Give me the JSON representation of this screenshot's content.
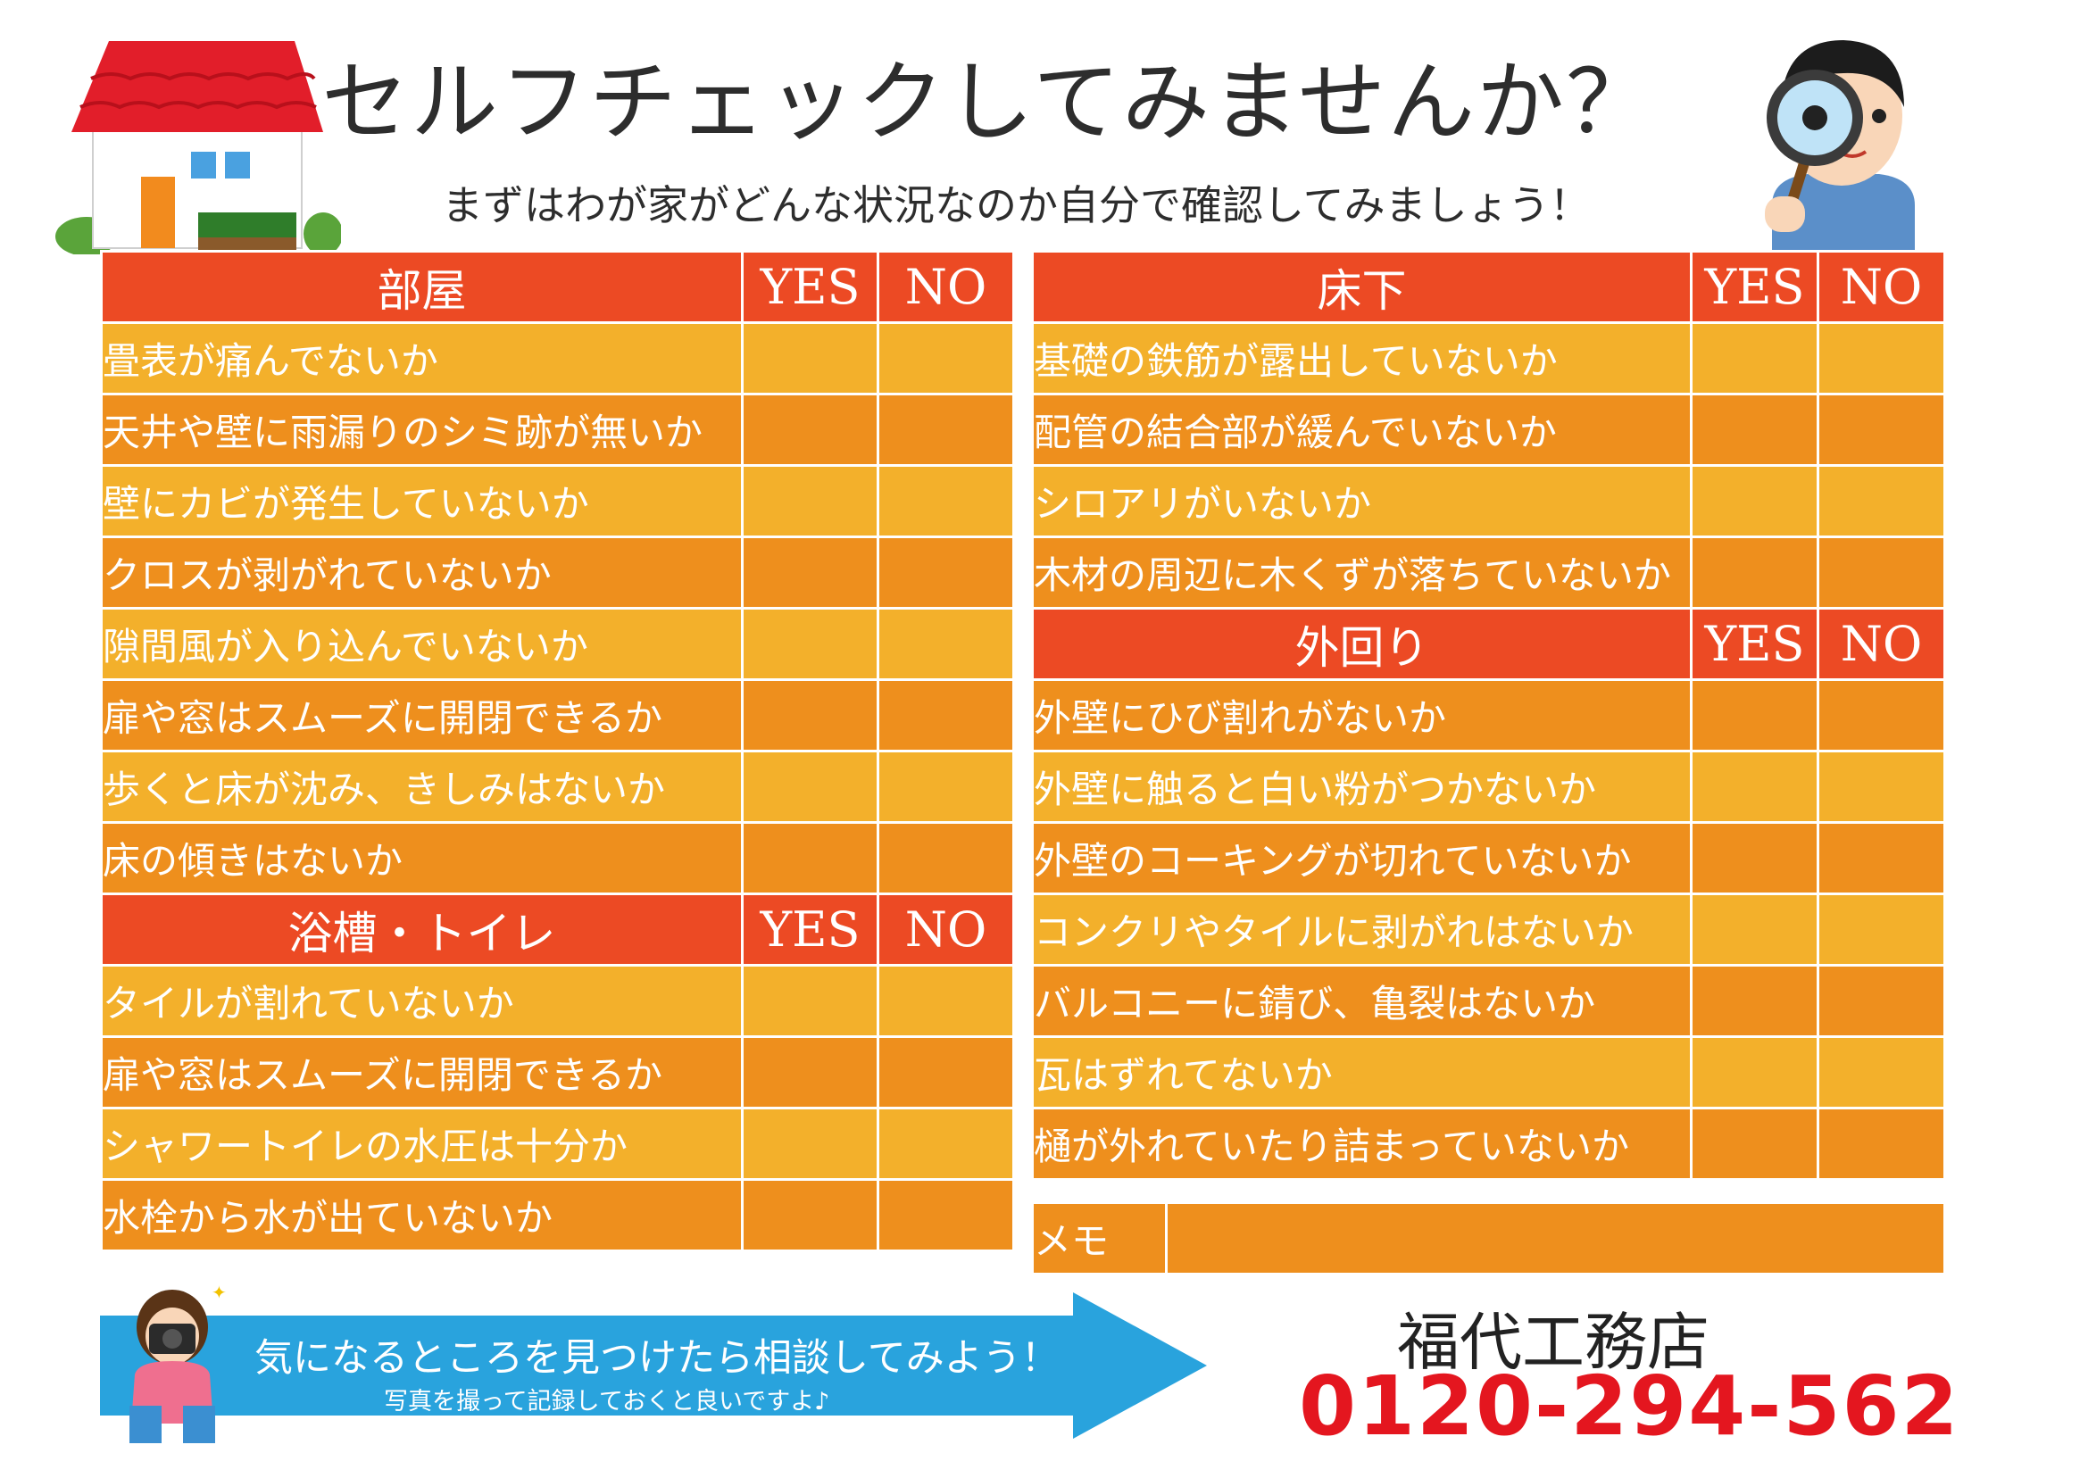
{
  "header": {
    "title": "セルフチェックしてみませんか？",
    "subtitle": "まずはわが家がどんな状況なのか自分で確認してみましょう！"
  },
  "columns": {
    "yes": "YES",
    "no": "NO"
  },
  "sections": {
    "heya": {
      "title": "部屋",
      "items": [
        "畳表が痛んでないか",
        "天井や壁に雨漏りのシミ跡が無いか",
        "壁にカビが発生していないか",
        "クロスが剥がれていないか",
        "隙間風が入り込んでいないか",
        "扉や窓はスムーズに開閉できるか",
        "歩くと床が沈み、きしみはないか",
        "床の傾きはないか"
      ]
    },
    "bath": {
      "title": "浴槽・トイレ",
      "items": [
        "タイルが割れていないか",
        "扉や窓はスムーズに開閉できるか",
        "シャワートイレの水圧は十分か",
        "水栓から水が出ていないか"
      ]
    },
    "yukashita": {
      "title": "床下",
      "items": [
        "基礎の鉄筋が露出していないか",
        "配管の結合部が緩んでいないか",
        "シロアリがいないか",
        "木材の周辺に木くずが落ちていないか"
      ]
    },
    "sotomawari": {
      "title": "外回り",
      "items": [
        "外壁にひび割れがないか",
        "外壁に触ると白い粉がつかないか",
        "外壁のコーキングが切れていないか",
        "コンクリやタイルに剥がれはないか",
        "バルコニーに錆び、亀裂はないか",
        "瓦はずれてないか",
        "樋が外れていたり詰まっていないか"
      ]
    }
  },
  "memo": {
    "label": "メモ"
  },
  "footer": {
    "banner_main": "気になるところを見つけたら相談してみよう！",
    "banner_sub": "写真を撮って記録しておくと良いですよ♪",
    "company": "福代工務店",
    "phone": "0120-294-562"
  },
  "colors": {
    "header_red": "#ec4a24",
    "row_yellow": "#f3b02b",
    "row_orange": "#ee8f1d",
    "banner_blue": "#29a3dd",
    "phone_red": "#e4161f"
  },
  "icons": [
    "house-illustration",
    "magnifier-boy-illustration",
    "camera-girl-illustration",
    "arrow-banner"
  ]
}
